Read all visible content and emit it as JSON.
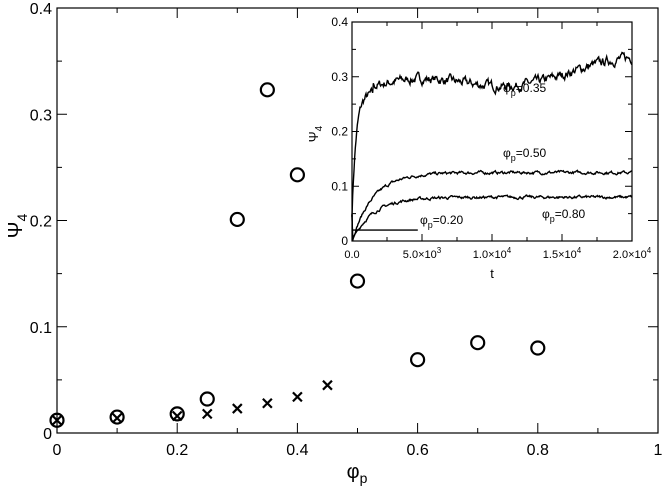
{
  "chart_data": [
    {
      "type": "scatter",
      "xlabel": "φ",
      "xlabel_sub": "p",
      "ylabel": "Ψ",
      "ylabel_sub": "4",
      "xlim": [
        0,
        1
      ],
      "ylim": [
        0,
        0.4
      ],
      "x_ticks": [
        0,
        0.2,
        0.4,
        0.6,
        0.8,
        1
      ],
      "x_tick_labels": [
        "0",
        "0.2",
        "0.4",
        "0.6",
        "0.8",
        "1"
      ],
      "y_ticks": [
        0,
        0.1,
        0.2,
        0.3,
        0.4
      ],
      "y_tick_labels": [
        "0",
        "0.1",
        "0.2",
        "0.3",
        "0.4"
      ],
      "grid": false,
      "series": [
        {
          "marker": "circle",
          "color": "#000000",
          "points": [
            [
              0.0,
              0.012
            ],
            [
              0.1,
              0.015
            ],
            [
              0.2,
              0.018
            ],
            [
              0.25,
              0.032
            ],
            [
              0.3,
              0.201
            ],
            [
              0.35,
              0.323
            ],
            [
              0.4,
              0.243
            ],
            [
              0.5,
              0.143
            ],
            [
              0.6,
              0.069
            ],
            [
              0.7,
              0.085
            ],
            [
              0.8,
              0.08
            ]
          ]
        },
        {
          "marker": "cross",
          "color": "#000000",
          "points": [
            [
              0.0,
              0.012
            ],
            [
              0.1,
              0.014
            ],
            [
              0.2,
              0.016
            ],
            [
              0.25,
              0.018
            ],
            [
              0.3,
              0.023
            ],
            [
              0.35,
              0.028
            ],
            [
              0.4,
              0.034
            ],
            [
              0.45,
              0.045
            ]
          ]
        }
      ]
    },
    {
      "type": "line",
      "xlabel": "t",
      "ylabel": "Ψ",
      "ylabel_sub": "4",
      "xlim": [
        0,
        20000
      ],
      "ylim": [
        0,
        0.4
      ],
      "x_ticks": [
        0,
        5000,
        10000,
        15000,
        20000
      ],
      "x_tick_labels": [
        {
          "base": "0.0",
          "exp": ""
        },
        {
          "base": "5.0×10",
          "exp": "3"
        },
        {
          "base": "1.0×10",
          "exp": "4"
        },
        {
          "base": "1.5×10",
          "exp": "4"
        },
        {
          "base": "2.0×10",
          "exp": "4"
        }
      ],
      "y_ticks": [
        0,
        0.1,
        0.2,
        0.3,
        0.4
      ],
      "y_tick_labels": [
        "0",
        "0.1",
        "0.2",
        "0.3",
        "0.4"
      ],
      "grid": false,
      "series": [
        {
          "name_base": "φ",
          "name_sub": "p",
          "name_val": "=0.35",
          "plateau": 0.32,
          "rise_time": 800,
          "end": 20000
        },
        {
          "name_base": "φ",
          "name_sub": "p",
          "name_val": "=0.50",
          "plateau": 0.125,
          "rise_time": 1500,
          "end": 20000
        },
        {
          "name_base": "φ",
          "name_sub": "p",
          "name_val": "=0.80",
          "plateau": 0.08,
          "rise_time": 1500,
          "end": 20000
        },
        {
          "name_base": "φ",
          "name_sub": "p",
          "name_val": "=0.20",
          "plateau": 0.02,
          "rise_time": 200,
          "end": 4700
        }
      ]
    }
  ]
}
